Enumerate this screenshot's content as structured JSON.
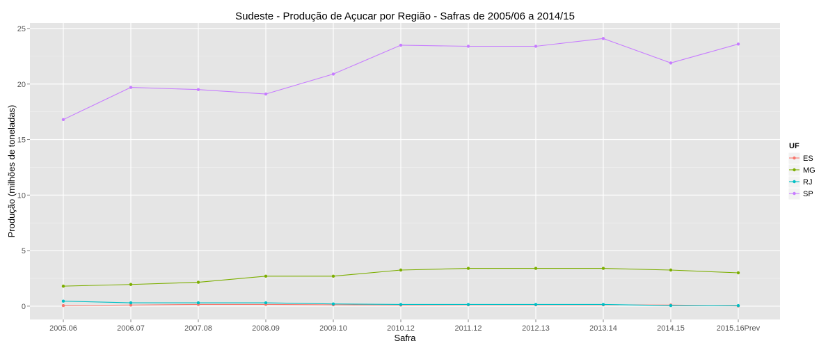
{
  "chart_data": {
    "type": "line",
    "title": "Sudeste  - Produção de Açucar por Região - Safras de 2005/06 a 2014/15",
    "xlabel": "Safra",
    "ylabel": "Produção (milhões de toneladas)",
    "categories": [
      "2005.06",
      "2006.07",
      "2007.08",
      "2008.09",
      "2009.10",
      "2010.12",
      "2011.12",
      "2012.13",
      "2013.14",
      "2014.15",
      "2015.16Prev"
    ],
    "ylim": [
      -1.2,
      25.5
    ],
    "yticks": [
      0,
      5,
      10,
      15,
      20,
      25
    ],
    "grid": true,
    "legend": {
      "title": "UF",
      "position": "right"
    },
    "series": [
      {
        "name": "ES",
        "color": "#F8766D",
        "values": [
          0.05,
          0.1,
          0.15,
          0.15,
          0.12,
          0.1,
          0.12,
          0.12,
          0.12,
          0.1,
          0.02
        ]
      },
      {
        "name": "MG",
        "color": "#7CAE00",
        "values": [
          1.8,
          1.95,
          2.15,
          2.7,
          2.7,
          3.25,
          3.4,
          3.4,
          3.4,
          3.25,
          3.0
        ]
      },
      {
        "name": "RJ",
        "color": "#00BFC4",
        "values": [
          0.45,
          0.3,
          0.3,
          0.3,
          0.2,
          0.15,
          0.15,
          0.15,
          0.15,
          0.05,
          0.05
        ]
      },
      {
        "name": "SP",
        "color": "#C77CFF",
        "values": [
          16.8,
          19.7,
          19.5,
          19.1,
          20.9,
          23.5,
          23.4,
          23.4,
          24.1,
          21.9,
          23.6
        ]
      }
    ]
  }
}
